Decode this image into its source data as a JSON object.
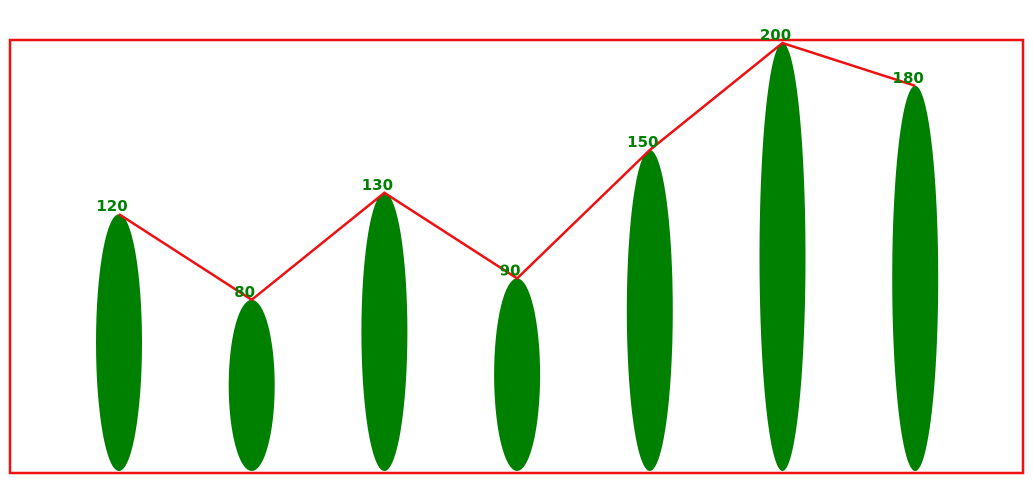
{
  "chart_data": {
    "type": "bar",
    "title": "",
    "xlabel": "",
    "ylabel": "",
    "ylim": [
      0,
      200
    ],
    "grid": false,
    "legend": "none",
    "bar_shape": "ellipse",
    "overlay": "line",
    "values": [
      120,
      80,
      130,
      90,
      150,
      200,
      180
    ],
    "value_labels": [
      "120",
      "80",
      "130",
      "90",
      "150",
      "200",
      "180"
    ],
    "colors": {
      "bar": "#008000",
      "label": "#008000",
      "line": "#ee1111",
      "frame": "#ee1111",
      "background": "#ffffff"
    }
  }
}
